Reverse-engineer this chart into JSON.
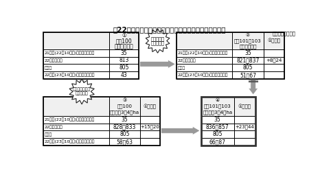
{
  "title": "、22年産米の作柄・作付状況にともなう需給ギャップ】",
  "unit_label": "（単位：万トン）",
  "row_labels": [
    "21年産(22年10月末)持越在庫見通し",
    "22年産生産量",
    "需要量",
    "22年産(23年10月末)持越在庫見通し"
  ],
  "t1_header": [
    "①",
    "作況100",
    "過剰作付なし"
  ],
  "t1_values": [
    "35",
    "813",
    "805",
    "43"
  ],
  "t2_header": [
    "②",
    "作況101～103",
    "過剰作付なし"
  ],
  "t2_diff_header": "①との差",
  "t2_col1": [
    "35",
    "821～837",
    "805",
    "51～67"
  ],
  "t2_col2": [
    "",
    "+8～24",
    "",
    ""
  ],
  "t3_header": [
    "③",
    "作況100",
    "過剰作付3～4万ha"
  ],
  "t3_diff_header": "①との差",
  "t3_col1": [
    "35",
    "828～833",
    "805",
    "58～63"
  ],
  "t3_col2": [
    "",
    "+15～20",
    "",
    ""
  ],
  "t4_header": [
    "④",
    "作況101～103",
    "過剰作付3～4万ha"
  ],
  "t4_diff_header": "①との差",
  "t4_col1": [
    "35",
    "836～857",
    "805",
    "66～87"
  ],
  "t4_col2": [
    "",
    "+23～44",
    "",
    ""
  ],
  "badge1_lines": [
    "豊作による",
    "過剰米発生"
  ],
  "badge2_lines": [
    "過剰作付による",
    "過剰米発生"
  ]
}
